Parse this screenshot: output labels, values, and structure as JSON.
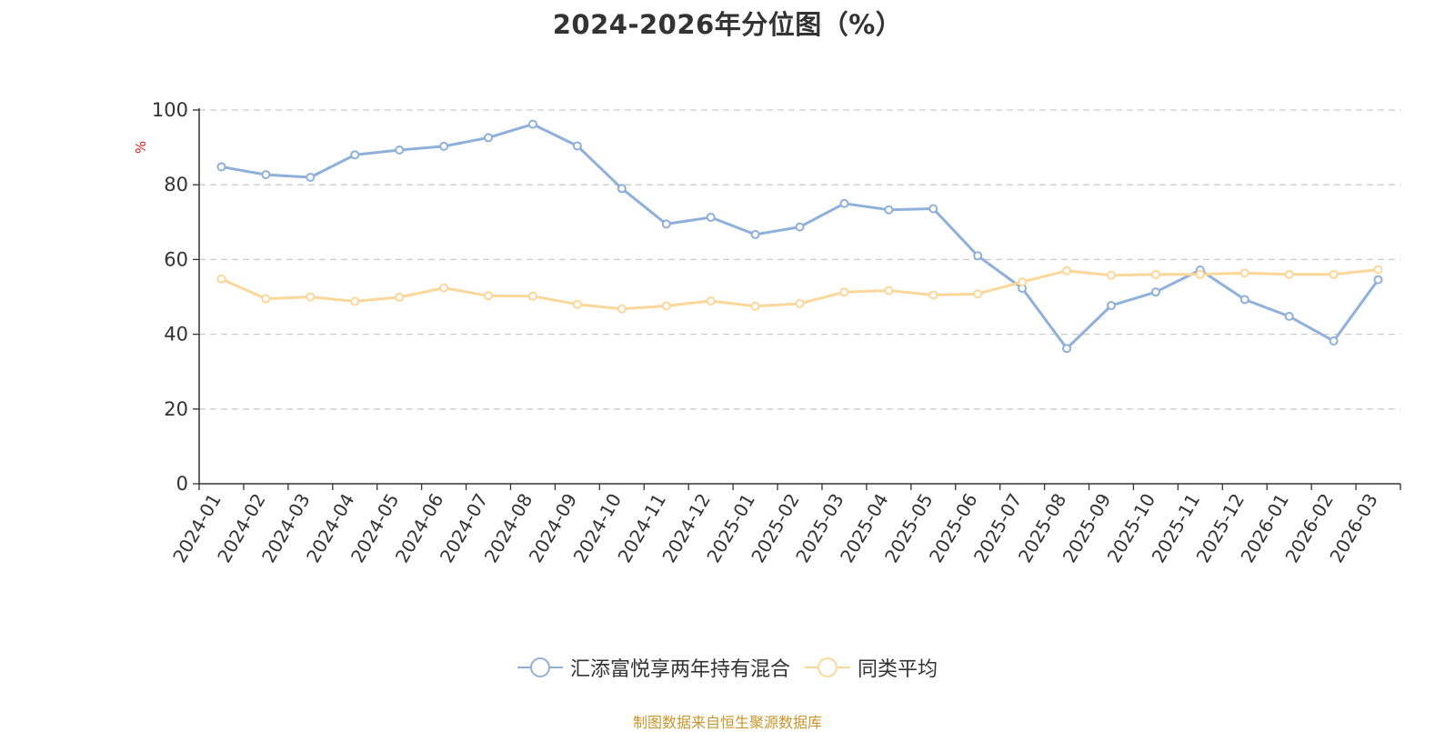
{
  "title": "2024-2026年分位图（%）",
  "source": "制图数据来自恒生聚源数据库",
  "chart_data": {
    "type": "line",
    "title": "2024-2026年分位图（%）",
    "xlabel": "",
    "ylabel": "%",
    "ylim": [
      0,
      100
    ],
    "yticks": [
      0,
      20,
      40,
      60,
      80,
      100
    ],
    "grid": true,
    "legend_position": "bottom",
    "categories": [
      "2024-01",
      "2024-02",
      "2024-03",
      "2024-04",
      "2024-05",
      "2024-06",
      "2024-07",
      "2024-08",
      "2024-09",
      "2024-10",
      "2024-11",
      "2024-12",
      "2025-01",
      "2025-02",
      "2025-03",
      "2025-04",
      "2025-05",
      "2025-06",
      "2025-07",
      "2025-08",
      "2025-09",
      "2025-10",
      "2025-11",
      "2025-12",
      "2026-01",
      "2026-02",
      "2026-03"
    ],
    "series": [
      {
        "name": "汇添富悦享两年持有混合",
        "color": "#8eb0da",
        "values": [
          84.8,
          82.7,
          82.0,
          88.0,
          89.3,
          90.3,
          92.6,
          96.2,
          90.4,
          79.0,
          69.5,
          71.3,
          66.7,
          68.7,
          75.0,
          73.3,
          73.6,
          61.0,
          52.3,
          36.2,
          47.7,
          51.3,
          57.2,
          49.3,
          44.8,
          38.2,
          54.6
        ]
      },
      {
        "name": "同类平均",
        "color": "#fcd79a",
        "values": [
          54.8,
          49.5,
          50.0,
          48.8,
          49.9,
          52.4,
          50.3,
          50.2,
          48.0,
          46.8,
          47.6,
          48.9,
          47.5,
          48.2,
          51.3,
          51.7,
          50.5,
          50.8,
          54.0,
          57.0,
          55.8,
          56.0,
          56.0,
          56.4,
          56.0,
          56.0,
          57.3
        ]
      }
    ]
  }
}
